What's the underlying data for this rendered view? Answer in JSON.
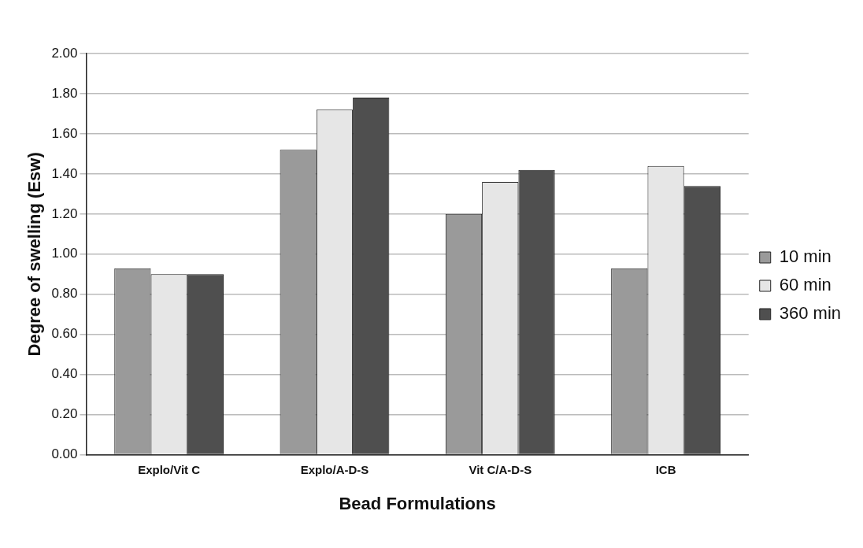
{
  "chart_data": {
    "type": "bar",
    "xlabel": "Bead Formulations",
    "ylabel": "Degree of swelling (Esw)",
    "categories": [
      "Explo/Vit C",
      "Explo/A-D-S",
      "Vit C/A-D-S",
      "ICB"
    ],
    "series": [
      {
        "name": "10 min",
        "color": "#9a9a9a",
        "values": [
          0.93,
          1.52,
          1.2,
          0.93
        ]
      },
      {
        "name": "60 min",
        "color": "#e6e6e6",
        "values": [
          0.9,
          1.72,
          1.36,
          1.44
        ]
      },
      {
        "name": "360 min",
        "color": "#4f4f4f",
        "values": [
          0.9,
          1.78,
          1.42,
          1.34
        ]
      }
    ],
    "ylim": [
      0,
      2
    ],
    "yticks": [
      {
        "value": 0,
        "label": "0.00"
      },
      {
        "value": 0.2,
        "label": "0.20"
      },
      {
        "value": 0.4,
        "label": "0.40"
      },
      {
        "value": 0.6,
        "label": "0.60"
      },
      {
        "value": 0.8,
        "label": "0.80"
      },
      {
        "value": 1,
        "label": "1.00"
      },
      {
        "value": 1.2,
        "label": "1.20"
      },
      {
        "value": 1.4,
        "label": "1.40"
      },
      {
        "value": 1.6,
        "label": "1.60"
      },
      {
        "value": 1.8,
        "label": "1.80"
      },
      {
        "value": 2,
        "label": "2.00"
      }
    ],
    "grid": "y",
    "legend": "right"
  }
}
